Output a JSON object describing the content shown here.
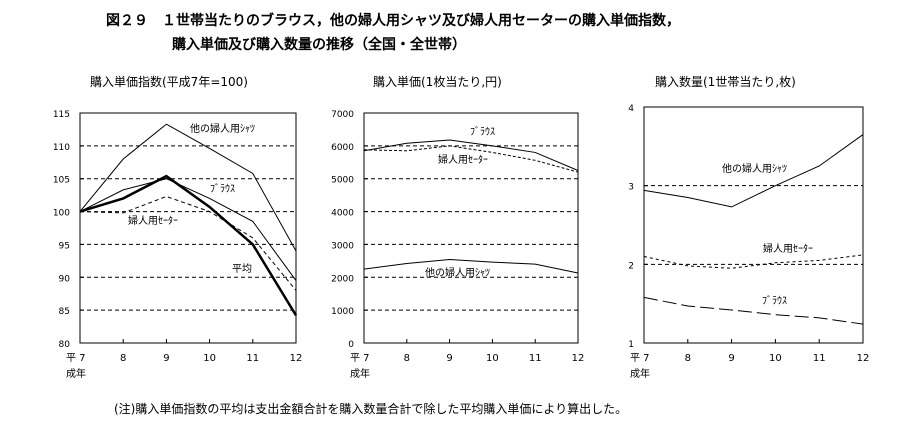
{
  "title": {
    "line1": "図２９　１世帯当たりのブラウス，他の婦人用シャツ及び婦人用セーターの購入単価指数，",
    "line2": "購入単価及び購入数量の推移（全国・全世帯）"
  },
  "note": "(注)購入単価指数の平均は支出金額合計を購入数量合計で除した平均購入単価により算出した。",
  "era_label": "成年",
  "chart_data": [
    {
      "type": "line",
      "title": "購入単価指数(平成7年=100)",
      "categories": [
        "平 7",
        "8",
        "9",
        "10",
        "11",
        "12"
      ],
      "ylim": [
        80,
        115
      ],
      "yticks": [
        80,
        85,
        90,
        95,
        100,
        105,
        110,
        115
      ],
      "series": [
        {
          "name": "他の婦人用ｼｬﾂ",
          "values": [
            100,
            108,
            113.3,
            109.6,
            105.8,
            94
          ]
        },
        {
          "name": "ﾌﾞﾗｳｽ",
          "values": [
            100,
            103.3,
            105,
            102,
            98.5,
            89.5
          ]
        },
        {
          "name": "婦人用ｾｰﾀｰ",
          "values": [
            100,
            99.8,
            102.3,
            100,
            96,
            88
          ]
        },
        {
          "name": "平均",
          "values": [
            100,
            102,
            105.4,
            100.7,
            95,
            84.2
          ]
        }
      ]
    },
    {
      "type": "line",
      "title": "購入単価(1枚当たり,円)",
      "categories": [
        "平 7",
        "8",
        "9",
        "10",
        "11",
        "12"
      ],
      "ylim": [
        0,
        7000
      ],
      "yticks": [
        0,
        1000,
        2000,
        3000,
        4000,
        5000,
        6000,
        7000
      ],
      "series": [
        {
          "name": "ﾌﾞﾗｳｽ",
          "values": [
            5850,
            6080,
            6180,
            6000,
            5800,
            5250
          ]
        },
        {
          "name": "婦人用ｾｰﾀｰ",
          "values": [
            5880,
            5850,
            6000,
            5800,
            5560,
            5200
          ]
        },
        {
          "name": "他の婦人用ｼｬﾂ",
          "values": [
            2250,
            2420,
            2540,
            2460,
            2400,
            2130
          ]
        }
      ]
    },
    {
      "type": "line",
      "title": "購入数量(1世帯当たり,枚)",
      "categories": [
        "平 7",
        "8",
        "9",
        "10",
        "11",
        "12"
      ],
      "ylim": [
        1,
        4
      ],
      "yticks": [
        1,
        2,
        3,
        4
      ],
      "series": [
        {
          "name": "他の婦人用ｼｬﾂ",
          "values": [
            2.94,
            2.85,
            2.73,
            3.0,
            3.25,
            3.65
          ]
        },
        {
          "name": "婦人用ｾｰﾀｰ",
          "values": [
            2.1,
            1.98,
            1.95,
            2.02,
            2.05,
            2.12
          ]
        },
        {
          "name": "ﾌﾞﾗｳｽ",
          "values": [
            1.58,
            1.47,
            1.42,
            1.36,
            1.32,
            1.24
          ]
        }
      ]
    }
  ]
}
